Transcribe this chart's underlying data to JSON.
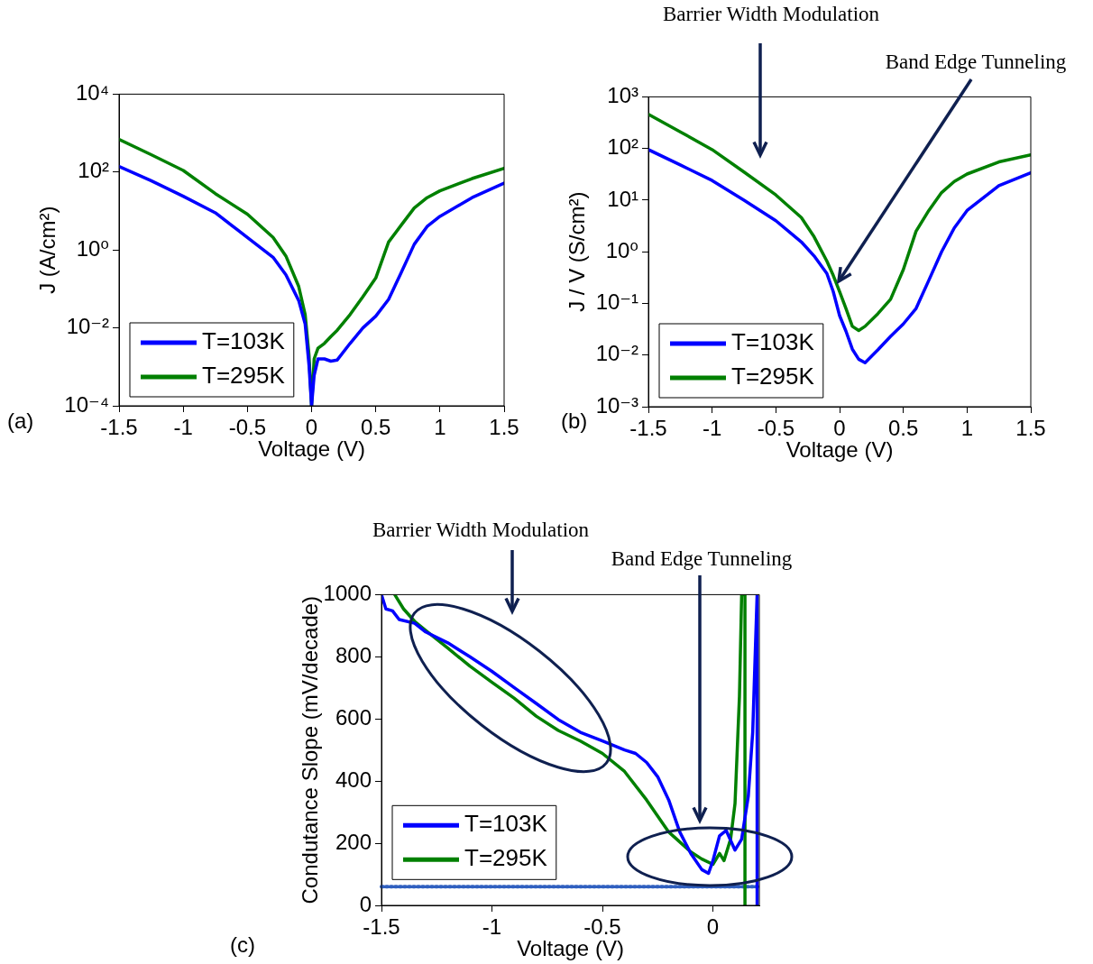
{
  "chart_data": [
    {
      "type": "line",
      "xlabel": "Voltage (V)",
      "ylabel": "J (A/cm²)",
      "log": "y",
      "xlim": [
        -1.5,
        1.5
      ],
      "xticks": [
        -1.5,
        -1,
        -0.5,
        0,
        0.5,
        1,
        1.5
      ],
      "ylim": [
        0.0001,
        10000
      ],
      "yticks": [
        {
          "value": 0.0001,
          "label": "10⁻⁴"
        },
        {
          "value": 0.01,
          "label": "10⁻²"
        },
        {
          "value": 1,
          "label": "10⁰"
        },
        {
          "value": 100,
          "label": "10²"
        },
        {
          "value": 10000,
          "label": "10⁴"
        }
      ],
      "grid": false,
      "legend": "bottom left",
      "marker": "none",
      "line_style": "solid",
      "annotations": [
        "(a)"
      ],
      "x": [
        -1.5,
        -1.25,
        -1,
        -0.75,
        -0.5,
        -0.3,
        -0.2,
        -0.1,
        -0.05,
        -0.02,
        0,
        0.02,
        0.05,
        0.1,
        0.15,
        0.2,
        0.3,
        0.4,
        0.5,
        0.6,
        0.7,
        0.8,
        0.9,
        1,
        1.25,
        1.5
      ],
      "series": [
        {
          "name": "T=103K",
          "color": "#0000ff",
          "values": [
            140,
            60,
            24,
            9,
            2.1,
            0.65,
            0.23,
            0.05,
            0.0125,
            0.0011,
            0.0001,
            0.0006,
            0.0016,
            0.0016,
            0.0014,
            0.0015,
            0.004,
            0.01,
            0.02,
            0.054,
            0.27,
            1.4,
            4,
            7.3,
            22,
            52
          ]
        },
        {
          "name": "T=295K",
          "color": "#008000",
          "values": [
            690,
            280,
            110,
            28,
            8.3,
            2.1,
            0.7,
            0.115,
            0.022,
            0.002,
            0.0001,
            0.0016,
            0.003,
            0.004,
            0.006,
            0.0087,
            0.022,
            0.063,
            0.19,
            1.6,
            4.4,
            12,
            22,
            33,
            68,
            125
          ]
        }
      ]
    },
    {
      "type": "line",
      "xlabel": "Voltage (V)",
      "ylabel": "J / V (S/cm²)",
      "log": "y",
      "xlim": [
        -1.5,
        1.5
      ],
      "xticks": [
        -1.5,
        -1,
        -0.5,
        0,
        0.5,
        1,
        1.5
      ],
      "ylim": [
        0.001,
        1000
      ],
      "yticks": [
        {
          "value": 0.001,
          "label": "10⁻³"
        },
        {
          "value": 0.01,
          "label": "10⁻²"
        },
        {
          "value": 0.1,
          "label": "10⁻¹"
        },
        {
          "value": 1,
          "label": "10⁰"
        },
        {
          "value": 10,
          "label": "10¹"
        },
        {
          "value": 100,
          "label": "10²"
        },
        {
          "value": 1000,
          "label": "10³"
        }
      ],
      "grid": false,
      "legend": "bottom left",
      "marker": "none",
      "line_style": "solid",
      "annotations": [
        "Barrier Width Modulation",
        "Band Edge Tunneling",
        "(b)"
      ],
      "x": [
        -1.5,
        -1.25,
        -1,
        -0.75,
        -0.5,
        -0.3,
        -0.2,
        -0.1,
        -0.05,
        0,
        0.05,
        0.1,
        0.15,
        0.2,
        0.3,
        0.4,
        0.5,
        0.6,
        0.7,
        0.8,
        0.9,
        1,
        1.25,
        1.5
      ],
      "series": [
        {
          "name": "T=103K",
          "color": "#0000ff",
          "values": [
            95,
            48,
            24,
            10,
            4,
            1.55,
            0.83,
            0.38,
            0.17,
            0.058,
            0.029,
            0.013,
            0.0083,
            0.0071,
            0.0126,
            0.023,
            0.04,
            0.08,
            0.28,
            1,
            2.9,
            6.3,
            19,
            34
          ]
        },
        {
          "name": "T=295K",
          "color": "#008000",
          "values": [
            460,
            210,
            95,
            35,
            12.6,
            4.6,
            1.95,
            0.66,
            0.35,
            0.17,
            0.08,
            0.036,
            0.03,
            0.036,
            0.063,
            0.12,
            0.45,
            2.5,
            6.3,
            14,
            23,
            32,
            55,
            75
          ]
        }
      ]
    },
    {
      "type": "line",
      "xlabel": "Voltage (V)",
      "ylabel": "Condutance Slope (mV/decade)",
      "xlim": [
        -1.5,
        0.21
      ],
      "xticks": [
        -1.5,
        -1,
        -0.5,
        0
      ],
      "ylim": [
        0,
        1000
      ],
      "yticks": [
        0,
        200,
        400,
        600,
        800,
        1000
      ],
      "grid": false,
      "legend": "bottom left",
      "marker": "none",
      "line_style": "solid",
      "annotations": [
        "Barrier Width Modulation",
        "Band Edge Tunneling",
        "(c)"
      ],
      "ref_lines": [
        {
          "axis": "y",
          "value": 60,
          "color": "#3060c0",
          "line_style": "dotted"
        }
      ],
      "series": [
        {
          "name": "T=103K",
          "color": "#0000ff",
          "x": [
            -1.5,
            -1.48,
            -1.45,
            -1.42,
            -1.35,
            -1.3,
            -1.2,
            -1.1,
            -1,
            -0.9,
            -0.8,
            -0.7,
            -0.6,
            -0.5,
            -0.4,
            -0.35,
            -0.3,
            -0.25,
            -0.2,
            -0.15,
            -0.1,
            -0.05,
            -0.02,
            0,
            0.03,
            0.06,
            0.1,
            0.13,
            0.16,
            0.18,
            0.2,
            0.2
          ],
          "values": [
            1000,
            954,
            948,
            920,
            908,
            880,
            845,
            800,
            753,
            701,
            650,
            598,
            557,
            529,
            500,
            489,
            460,
            414,
            339,
            236,
            167,
            115,
            103,
            144,
            224,
            241,
            178,
            213,
            351,
            557,
            1000,
            0
          ]
        },
        {
          "name": "T=295K",
          "color": "#008000",
          "x": [
            -1.44,
            -1.4,
            -1.35,
            -1.3,
            -1.2,
            -1.1,
            -1,
            -0.9,
            -0.8,
            -0.7,
            -0.6,
            -0.5,
            -0.4,
            -0.3,
            -0.2,
            -0.1,
            -0.05,
            0,
            0.03,
            0.05,
            0.08,
            0.1,
            0.12,
            0.13,
            0.145,
            0.145
          ],
          "values": [
            1000,
            954,
            914,
            885,
            828,
            770,
            718,
            667,
            609,
            563,
            529,
            489,
            431,
            339,
            236,
            172,
            149,
            132,
            167,
            144,
            213,
            328,
            672,
            1000,
            1000,
            0
          ]
        }
      ]
    }
  ]
}
